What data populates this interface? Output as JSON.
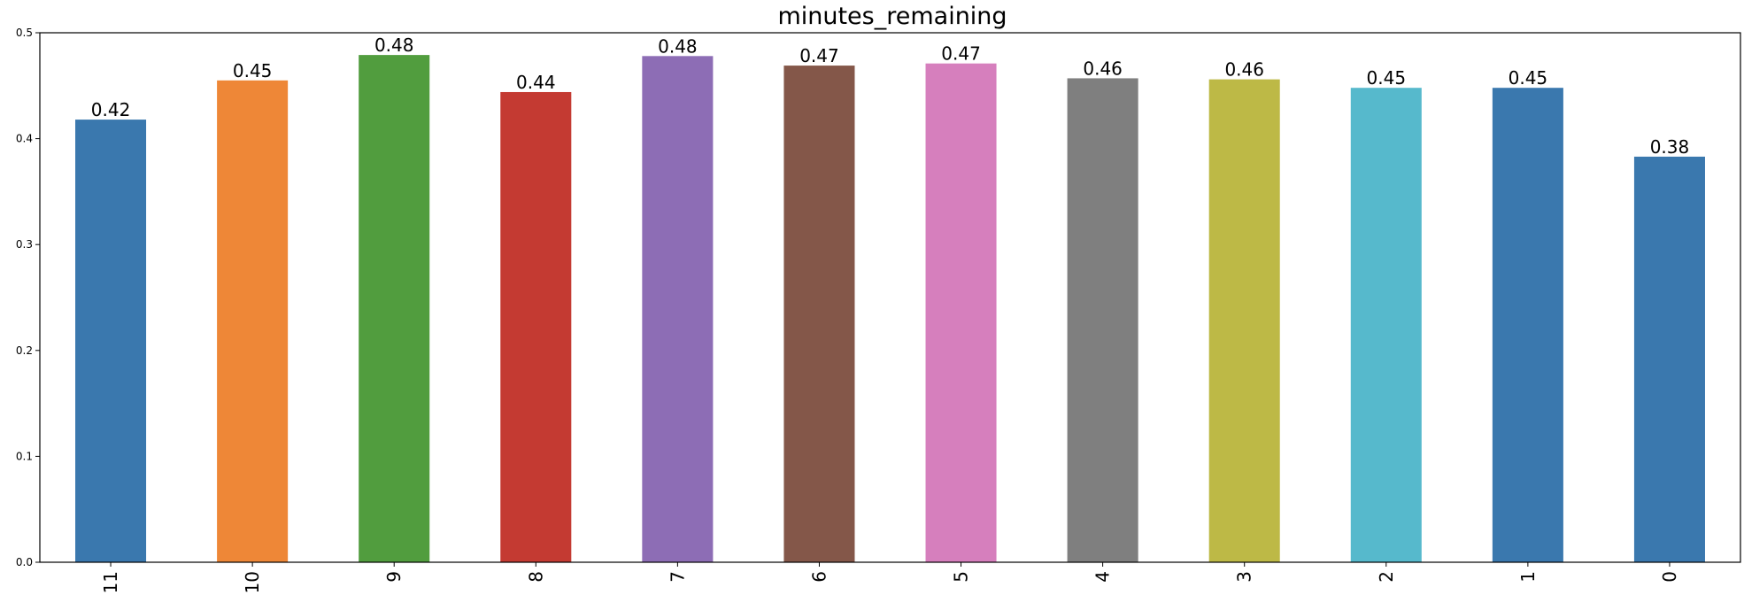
{
  "chart_data": {
    "type": "bar",
    "title": "minutes_remaining",
    "xlabel": "",
    "ylabel": "",
    "categories": [
      "11",
      "10",
      "9",
      "8",
      "7",
      "6",
      "5",
      "4",
      "3",
      "2",
      "1",
      "0"
    ],
    "values": [
      0.418,
      0.455,
      0.479,
      0.444,
      0.478,
      0.469,
      0.471,
      0.457,
      0.456,
      0.448,
      0.448,
      0.383
    ],
    "data_labels": [
      "0.42",
      "0.45",
      "0.48",
      "0.44",
      "0.48",
      "0.47",
      "0.47",
      "0.46",
      "0.46",
      "0.45",
      "0.45",
      "0.38"
    ],
    "colors": [
      "#3a78ae",
      "#ee8737",
      "#519d3e",
      "#c43a32",
      "#8d6db5",
      "#845749",
      "#d67fbd",
      "#7f7f7f",
      "#bdb946",
      "#56b9cc",
      "#3a78ae",
      "#3a78ae"
    ],
    "ylim": [
      0,
      0.5
    ],
    "yticks": [
      0.0,
      0.1,
      0.2,
      0.3,
      0.4,
      0.5
    ],
    "ytick_labels": [
      "0.0",
      "0.1",
      "0.2",
      "0.3",
      "0.4",
      "0.5"
    ],
    "grid": false,
    "legend": "none"
  }
}
